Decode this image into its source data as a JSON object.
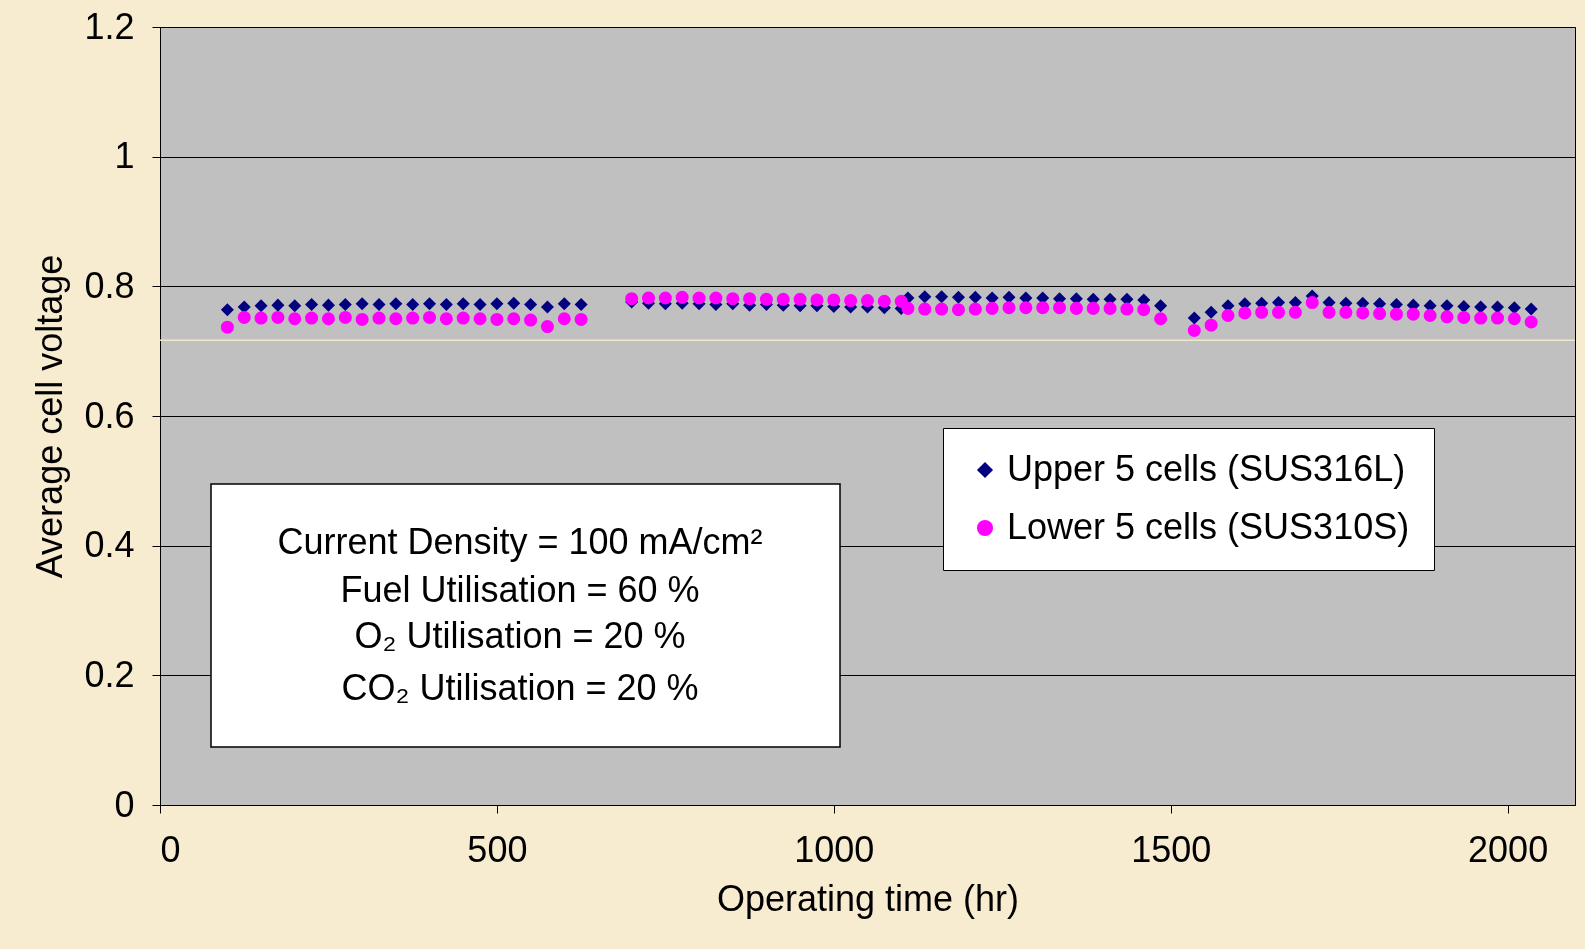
{
  "chart_data": {
    "type": "scatter",
    "xlabel": "Operating time (hr)",
    "ylabel": "Average cell voltage",
    "xlim": [
      0,
      2100
    ],
    "xticks": [
      0,
      500,
      1000,
      1500,
      2000
    ],
    "ylim": [
      0,
      1.2
    ],
    "yticks": [
      0,
      0.2,
      0.4,
      0.6,
      0.8,
      1,
      1.2
    ],
    "grid": "y",
    "legend": "right",
    "ref_lines": [
      {
        "axis": "y",
        "value": 0.717,
        "color": "#f0e6c8"
      }
    ],
    "annotations": [
      "Current Density = 100 mA/cm²",
      "Fuel Utilisation = 60 %",
      "O₂ Utilisation = 20 %",
      "CO₂ Utilisation = 20 %"
    ],
    "series": [
      {
        "name": "Upper 5 cells (SUS316L)",
        "color": "#000080",
        "marker": "diamond",
        "x": [
          100,
          125,
          150,
          175,
          200,
          225,
          250,
          275,
          300,
          325,
          350,
          375,
          400,
          425,
          450,
          475,
          500,
          525,
          550,
          575,
          600,
          625,
          700,
          725,
          750,
          775,
          800,
          825,
          850,
          875,
          900,
          925,
          950,
          975,
          1000,
          1025,
          1050,
          1075,
          1100,
          1110,
          1135,
          1160,
          1185,
          1210,
          1235,
          1260,
          1285,
          1310,
          1335,
          1360,
          1385,
          1410,
          1435,
          1460,
          1485,
          1535,
          1560,
          1585,
          1610,
          1635,
          1660,
          1685,
          1710,
          1735,
          1760,
          1785,
          1810,
          1835,
          1860,
          1885,
          1910,
          1935,
          1960,
          1985,
          2010,
          2035
        ],
        "values": [
          0.764,
          0.768,
          0.77,
          0.771,
          0.77,
          0.772,
          0.771,
          0.772,
          0.773,
          0.772,
          0.773,
          0.772,
          0.773,
          0.772,
          0.773,
          0.772,
          0.773,
          0.774,
          0.772,
          0.768,
          0.773,
          0.772,
          0.776,
          0.774,
          0.773,
          0.774,
          0.773,
          0.772,
          0.773,
          0.771,
          0.772,
          0.771,
          0.77,
          0.77,
          0.769,
          0.768,
          0.768,
          0.767,
          0.766,
          0.782,
          0.784,
          0.784,
          0.783,
          0.783,
          0.782,
          0.783,
          0.782,
          0.782,
          0.781,
          0.781,
          0.78,
          0.78,
          0.78,
          0.779,
          0.77,
          0.751,
          0.76,
          0.77,
          0.773,
          0.774,
          0.775,
          0.775,
          0.785,
          0.775,
          0.774,
          0.774,
          0.773,
          0.772,
          0.771,
          0.77,
          0.77,
          0.769,
          0.768,
          0.768,
          0.767,
          0.765
        ]
      },
      {
        "name": "Lower 5 cells (SUS310S)",
        "color": "#ff00ff",
        "marker": "circle",
        "x": [
          100,
          125,
          150,
          175,
          200,
          225,
          250,
          275,
          300,
          325,
          350,
          375,
          400,
          425,
          450,
          475,
          500,
          525,
          550,
          575,
          600,
          625,
          700,
          725,
          750,
          775,
          800,
          825,
          850,
          875,
          900,
          925,
          950,
          975,
          1000,
          1025,
          1050,
          1075,
          1100,
          1110,
          1135,
          1160,
          1185,
          1210,
          1235,
          1260,
          1285,
          1310,
          1335,
          1360,
          1385,
          1410,
          1435,
          1460,
          1485,
          1535,
          1560,
          1585,
          1610,
          1635,
          1660,
          1685,
          1710,
          1735,
          1760,
          1785,
          1810,
          1835,
          1860,
          1885,
          1910,
          1935,
          1960,
          1985,
          2010,
          2035
        ],
        "values": [
          0.737,
          0.752,
          0.751,
          0.752,
          0.75,
          0.751,
          0.75,
          0.752,
          0.749,
          0.751,
          0.75,
          0.751,
          0.752,
          0.75,
          0.751,
          0.75,
          0.749,
          0.75,
          0.748,
          0.738,
          0.75,
          0.749,
          0.781,
          0.782,
          0.782,
          0.783,
          0.782,
          0.782,
          0.781,
          0.781,
          0.78,
          0.78,
          0.78,
          0.779,
          0.779,
          0.778,
          0.778,
          0.777,
          0.777,
          0.766,
          0.765,
          0.765,
          0.764,
          0.765,
          0.766,
          0.767,
          0.767,
          0.767,
          0.767,
          0.766,
          0.766,
          0.766,
          0.765,
          0.764,
          0.75,
          0.732,
          0.74,
          0.755,
          0.759,
          0.76,
          0.76,
          0.76,
          0.775,
          0.76,
          0.76,
          0.759,
          0.758,
          0.757,
          0.757,
          0.755,
          0.753,
          0.752,
          0.751,
          0.751,
          0.75,
          0.745
        ]
      }
    ]
  }
}
